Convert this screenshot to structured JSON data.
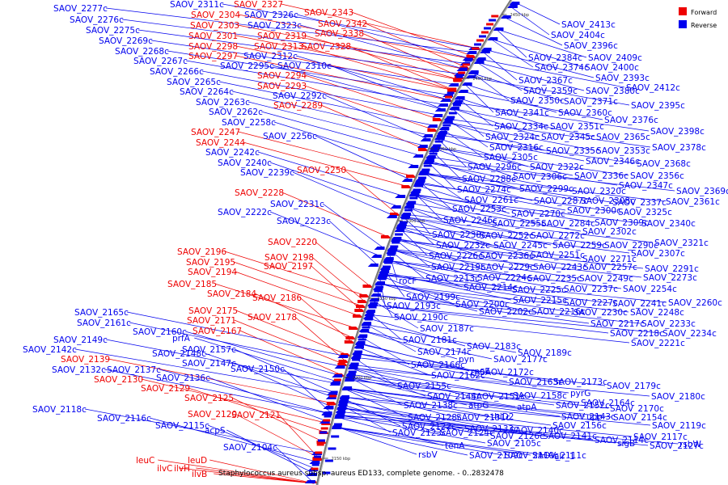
{
  "legend": {
    "forward": {
      "label": "Forward",
      "color": "#ee0000"
    },
    "reverse": {
      "label": "Reverse",
      "color": "#0000ee"
    }
  },
  "caption": "Staphylococcus aureus subsp. aureus ED133, complete genome. - 0..2832478",
  "ticks": [
    "2450 kbp",
    "2400 kbp",
    "2350 kbp",
    "2300 kbp",
    "2250 kbp",
    "2200 kbp",
    "2150 kbp"
  ],
  "forward_labels": [
    "SAOV_2304",
    "SAOV_2327",
    "SAOV_2343",
    "SAOV_2342",
    "SAOV_2338",
    "SAOV_2303",
    "SAOV_2301",
    "SAOV_2319",
    "SAOV_2298",
    "SAOV_2313",
    "SAOV_2328",
    "SAOV_2297",
    "SAOV_2294",
    "SAOV_2293",
    "SAOV_2289",
    "SAOV_2247",
    "SAOV_2244",
    "SAOV_2250",
    "SAOV_2228",
    "SAOV_2220",
    "SAOV_2196",
    "SAOV_2198",
    "SAOV_2195",
    "SAOV_2197",
    "SAOV_2194",
    "SAOV_2185",
    "SAOV_2184",
    "SAOV_2186",
    "SAOV_2175",
    "SAOV_2171",
    "SAOV_2178",
    "SAOV_2167",
    "SAOV_2139",
    "SAOV_2130",
    "SAOV_2129",
    "SAOV_2125",
    "SAOV_2120",
    "SAOV_2121",
    "leuC",
    "leuD",
    "ilvC",
    "ilvH",
    "ilvB"
  ],
  "reverse_labels_left": [
    "SAOV_2277c",
    "SAOV_2311c",
    "SAOV_2276c",
    "SAOV_2326c",
    "SAOV_2323c",
    "SAOV_2275c",
    "SAOV_2269c",
    "SAOV_2268c",
    "SAOV_2312c",
    "SAOV_2267c",
    "SAOV_2295c",
    "SAOV_2310c",
    "SAOV_2266c",
    "SAOV_2265c",
    "SAOV_2292c",
    "SAOV_2264c",
    "SAOV_2263c",
    "SAOV_2262c",
    "SAOV_2258c",
    "SAOV_2256c",
    "SAOV_2242c",
    "SAOV_2240c",
    "SAOV_2239c",
    "SAOV_2231c",
    "SAOV_2222c",
    "SAOV_2223c",
    "SAOV_2165c",
    "SAOV_2161c",
    "SAOV_2160c",
    "prfA",
    "SAOV_2149c",
    "SAOV_2157c",
    "SAOV_2142c",
    "SAOV_2148c",
    "SAOV_2147c",
    "SAOV_2132c",
    "SAOV_2137c",
    "SAOV_2150c",
    "SAOV_2136c",
    "SAOV_2118c",
    "SAOV_2116c",
    "SAOV_2115c",
    "acpS",
    "SAOV_2104c"
  ],
  "reverse_labels_right": [
    "SAOV_2413c",
    "SAOV_2404c",
    "SAOV_2396c",
    "SAOV_2384c",
    "SAOV_2409c",
    "SAOV_2374c",
    "SAOV_2400c",
    "SAOV_2393c",
    "SAOV_2367c",
    "SAOV_2412c",
    "SAOV_2359c",
    "SAOV_2380c",
    "SAOV_2350c",
    "SAOV_2371c",
    "SAOV_2395c",
    "SAOV_2341c",
    "SAOV_2360c",
    "SAOV_2376c",
    "SAOV_2334c",
    "SAOV_2351c",
    "SAOV_2398c",
    "SAOV_2324c",
    "SAOV_2345c",
    "SAOV_2365c",
    "SAOV_2316c",
    "SAOV_2335c",
    "SAOV_2353c",
    "SAOV_2378c",
    "SAOV_2305c",
    "SAOV_2346c",
    "SAOV_2296c",
    "SAOV_2322c",
    "SAOV_2368c",
    "SAOV_2306c",
    "SAOV_2336c",
    "SAOV_2356c",
    "SAOV_2288c",
    "SAOV_2347c",
    "SAOV_2274c",
    "SAOV_2299c",
    "SAOV_2320c",
    "SAOV_2369c",
    "SAOV_2261c",
    "SAOV_2287c",
    "SAOV_2308c",
    "SAOV_2337c",
    "SAOV_2361c",
    "SAOV_2253c",
    "SAOV_2270c",
    "SAOV_2300c",
    "SAOV_2325c",
    "SAOV_2246c",
    "SAOV_2255c",
    "SAOV_2284c",
    "SAOV_2309c",
    "SAOV_2340c",
    "SAOV_2238c",
    "SAOV_2252c",
    "SAOV_2272c",
    "SAOV_2302c",
    "SAOV_2232c",
    "SAOV_2245c",
    "SAOV_2259c",
    "SAOV_2290c",
    "SAOV_2321c",
    "SAOV_2226c",
    "SAOV_2236c",
    "SAOV_2251c",
    "SAOV_2271c",
    "SAOV_2307c",
    "SAOV_2219c",
    "SAOV_2229c",
    "SAOV_2243c",
    "SAOV_2257c",
    "SAOV_2291c",
    "SAOV_2213c",
    "SAOV_2224c",
    "SAOV_2235c",
    "SAOV_2249c",
    "SAOV_2273c",
    "rocF",
    "SAOV_2214c",
    "SAOV_2225c",
    "SAOV_2237c",
    "SAOV_2254c",
    "SAOV_2199c",
    "SAOV_2215c",
    "SAOV_2227c",
    "SAOV_2241c",
    "SAOV_2260c",
    "SAOV_2193c",
    "SAOV_2200c",
    "SAOV_2202c",
    "SAOV_2216c",
    "SAOV_2230c",
    "SAOV_2248c",
    "SAOV_2190c",
    "SAOV_2217c",
    "SAOV_2233c",
    "SAOV_2187c",
    "SAOV_2218c",
    "SAOV_2234c",
    "SAOV_2181c",
    "SAOV_2221c",
    "SAOV_2183c",
    "SAOV_2174c",
    "SAOV_2189c",
    "pyn",
    "SAOV_2177c",
    "SAOV_2166c",
    "SAOV_2162c",
    "rpoE",
    "SAOV_2172c",
    "SAOV_2163c",
    "SAOV_2173c",
    "SAOV_2179c",
    "SAOV_2155c",
    "SAOV_2144c",
    "SAOV_2151c",
    "SAOV_2158c",
    "pyrG",
    "SAOV_2180c",
    "SAOV_2164c",
    "SAOV_2138c",
    "atpG",
    "atpA",
    "SAOV_2152c",
    "SAOV_2170c",
    "SAOV_2128c",
    "SAOV_2131c",
    "thiD2",
    "SAOV_2143c",
    "upp",
    "SAOV_2154c",
    "SAOV_2122c",
    "SAOV_2133c",
    "SAOV_2140c",
    "SAOV_2156c",
    "SAOV_2119c",
    "SAOV_2123c",
    "SAOV_2124c",
    "SAOV_2126c",
    "SAOV_2141c",
    "SAOV_2114c",
    "SAOV_2117c",
    "SAOV_2127c",
    "tenA",
    "SAOV_2105c",
    "sigB",
    "rsbW",
    "rsbV",
    "SAOV_2109c",
    "SAOV_2110c",
    "SAOV_2111c",
    "alr_1"
  ]
}
